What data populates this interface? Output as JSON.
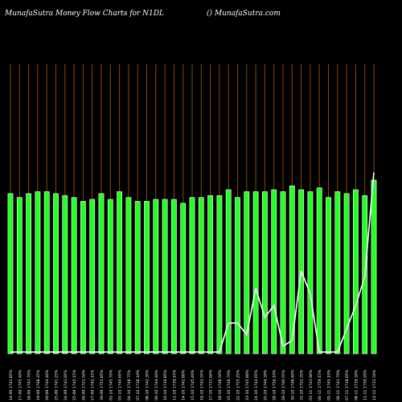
{
  "header": {
    "title": "MunafaSutra  Money Flow  Charts for N1DL",
    "site": "() MunafaSutra.com"
  },
  "colors": {
    "background": "#000000",
    "bar": "#22ff22",
    "bar_edge": "#ffffff",
    "vline": "#8a4a00",
    "line": "#ffffff"
  },
  "chart_data": {
    "type": "bar",
    "title": "MunafaSutra  Money Flow  Charts for N1DL",
    "grid": "vertical lines at each bar",
    "categories": [
      "14-09 1741.85%",
      "17-09 1745.40%",
      "18-09 1741.70%",
      "19-09 1748.25%",
      "20-09 1744.40%",
      "23-09 1741.25%",
      "24-09 1743.65%",
      "25-09 1745.15%",
      "26-09 1721.50%",
      "27-09 1742.15%",
      "30-09 1752.85%",
      "01-10 1745.70%",
      "03-10 1740.65%",
      "04-10 1748.75%",
      "07-10 1738.10%",
      "08-10 1742.30%",
      "09-10 1744.40%",
      "10-10 1736.85%",
      "11-10 1739.15%",
      "14-10 1742.80%",
      "15-10 1745.40%",
      "16-10 1742.55%",
      "17-10 1731.60%",
      "18-10 1748.50%",
      "21-10 1746.70%",
      "22-10 1755.25%",
      "23-10 1745.80%",
      "24-10 1742.65%",
      "25-10 1740.30%",
      "28-10 1756.10%",
      "29-10 1760.55%",
      "30-10 1748.40%",
      "31-10 1752.35%",
      "01-11 1743.90%",
      "04-11 1759.15%",
      "05-11 1745.10%",
      "06-11 1741.70%",
      "07-11 1738.65%",
      "08-11 1739.30%",
      "11-11 1750.20%",
      "12-11 1733.50%"
    ],
    "series": [
      {
        "type": "bar",
        "values": [
          83,
          81,
          83,
          84,
          84,
          83,
          82,
          81,
          79,
          80,
          83,
          80,
          84,
          81,
          79,
          79,
          80,
          80,
          80,
          78,
          81,
          81,
          82,
          82,
          85,
          81,
          84,
          84,
          84,
          85,
          84,
          87,
          85,
          84,
          86,
          81,
          84,
          83,
          85,
          82,
          90
        ]
      },
      {
        "type": "line",
        "values": [
          -15,
          -15,
          -15,
          -15,
          -15,
          -15,
          -15,
          -15,
          -15,
          -15,
          -15,
          -15,
          -15,
          -15,
          -15,
          -15,
          -15,
          -15,
          -15,
          -15,
          -15,
          -15,
          -15,
          -15,
          10,
          10,
          0,
          40,
          15,
          25,
          -10,
          -5,
          55,
          35,
          -15,
          -15,
          -15,
          5,
          25,
          50,
          140
        ]
      }
    ],
    "ylim": [
      -20,
      150
    ]
  }
}
